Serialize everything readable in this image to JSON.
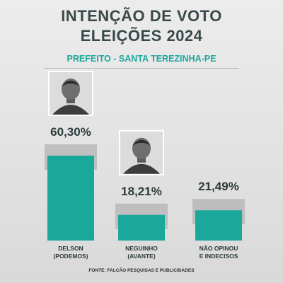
{
  "header": {
    "title_line1": "INTENÇÃO DE VOTO",
    "title_line2": "ELEIÇÕES 2024",
    "subtitle": "PREFEITO - SANTA TEREZINHA-PE"
  },
  "colors": {
    "bar": "#1aa89b",
    "bar_shadow": "#b9b9b9",
    "title": "#3a4a4a",
    "label": "#2d3a3a"
  },
  "chart_data": {
    "type": "bar",
    "categories": [
      "DELSON (PODEMOS)",
      "NEGUINHO (AVANTE)",
      "NÃO OPINOU E INDECISOS"
    ],
    "category_lines": [
      [
        "DELSON",
        "(PODEMOS)"
      ],
      [
        "NEGUINHO",
        "(AVANTE)"
      ],
      [
        "NÃO OPINOU",
        "E INDECISOS"
      ]
    ],
    "values": [
      60.3,
      18.21,
      21.49
    ],
    "value_labels": [
      "60,30%",
      "18,21%",
      "21,49%"
    ],
    "candidate_photos": [
      true,
      true,
      false
    ],
    "ylim": [
      0,
      70
    ],
    "unit": "%",
    "grid": false,
    "legend": "none"
  },
  "footer": {
    "source": "FONTE: FALCÃO PESQUISAS E PUBLICIDADES"
  }
}
